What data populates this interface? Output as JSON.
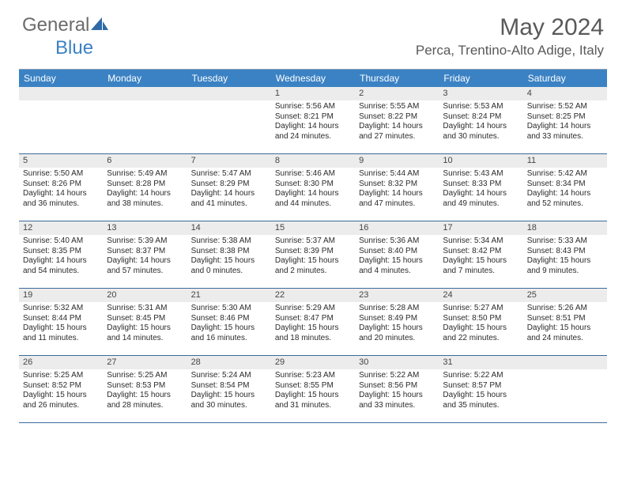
{
  "brand": {
    "text_gray": "General",
    "text_blue": "Blue"
  },
  "title": "May 2024",
  "location": "Perca, Trentino-Alto Adige, Italy",
  "colors": {
    "header_bg": "#3b82c4",
    "header_text": "#ffffff",
    "daynum_band": "#ececec",
    "week_divider": "#3b6a9a",
    "body_text": "#2b2b2b",
    "title_text": "#595959"
  },
  "weekdays": [
    "Sunday",
    "Monday",
    "Tuesday",
    "Wednesday",
    "Thursday",
    "Friday",
    "Saturday"
  ],
  "weeks": [
    [
      null,
      null,
      null,
      {
        "n": "1",
        "sunrise": "Sunrise: 5:56 AM",
        "sunset": "Sunset: 8:21 PM",
        "daylight": "Daylight: 14 hours and 24 minutes."
      },
      {
        "n": "2",
        "sunrise": "Sunrise: 5:55 AM",
        "sunset": "Sunset: 8:22 PM",
        "daylight": "Daylight: 14 hours and 27 minutes."
      },
      {
        "n": "3",
        "sunrise": "Sunrise: 5:53 AM",
        "sunset": "Sunset: 8:24 PM",
        "daylight": "Daylight: 14 hours and 30 minutes."
      },
      {
        "n": "4",
        "sunrise": "Sunrise: 5:52 AM",
        "sunset": "Sunset: 8:25 PM",
        "daylight": "Daylight: 14 hours and 33 minutes."
      }
    ],
    [
      {
        "n": "5",
        "sunrise": "Sunrise: 5:50 AM",
        "sunset": "Sunset: 8:26 PM",
        "daylight": "Daylight: 14 hours and 36 minutes."
      },
      {
        "n": "6",
        "sunrise": "Sunrise: 5:49 AM",
        "sunset": "Sunset: 8:28 PM",
        "daylight": "Daylight: 14 hours and 38 minutes."
      },
      {
        "n": "7",
        "sunrise": "Sunrise: 5:47 AM",
        "sunset": "Sunset: 8:29 PM",
        "daylight": "Daylight: 14 hours and 41 minutes."
      },
      {
        "n": "8",
        "sunrise": "Sunrise: 5:46 AM",
        "sunset": "Sunset: 8:30 PM",
        "daylight": "Daylight: 14 hours and 44 minutes."
      },
      {
        "n": "9",
        "sunrise": "Sunrise: 5:44 AM",
        "sunset": "Sunset: 8:32 PM",
        "daylight": "Daylight: 14 hours and 47 minutes."
      },
      {
        "n": "10",
        "sunrise": "Sunrise: 5:43 AM",
        "sunset": "Sunset: 8:33 PM",
        "daylight": "Daylight: 14 hours and 49 minutes."
      },
      {
        "n": "11",
        "sunrise": "Sunrise: 5:42 AM",
        "sunset": "Sunset: 8:34 PM",
        "daylight": "Daylight: 14 hours and 52 minutes."
      }
    ],
    [
      {
        "n": "12",
        "sunrise": "Sunrise: 5:40 AM",
        "sunset": "Sunset: 8:35 PM",
        "daylight": "Daylight: 14 hours and 54 minutes."
      },
      {
        "n": "13",
        "sunrise": "Sunrise: 5:39 AM",
        "sunset": "Sunset: 8:37 PM",
        "daylight": "Daylight: 14 hours and 57 minutes."
      },
      {
        "n": "14",
        "sunrise": "Sunrise: 5:38 AM",
        "sunset": "Sunset: 8:38 PM",
        "daylight": "Daylight: 15 hours and 0 minutes."
      },
      {
        "n": "15",
        "sunrise": "Sunrise: 5:37 AM",
        "sunset": "Sunset: 8:39 PM",
        "daylight": "Daylight: 15 hours and 2 minutes."
      },
      {
        "n": "16",
        "sunrise": "Sunrise: 5:36 AM",
        "sunset": "Sunset: 8:40 PM",
        "daylight": "Daylight: 15 hours and 4 minutes."
      },
      {
        "n": "17",
        "sunrise": "Sunrise: 5:34 AM",
        "sunset": "Sunset: 8:42 PM",
        "daylight": "Daylight: 15 hours and 7 minutes."
      },
      {
        "n": "18",
        "sunrise": "Sunrise: 5:33 AM",
        "sunset": "Sunset: 8:43 PM",
        "daylight": "Daylight: 15 hours and 9 minutes."
      }
    ],
    [
      {
        "n": "19",
        "sunrise": "Sunrise: 5:32 AM",
        "sunset": "Sunset: 8:44 PM",
        "daylight": "Daylight: 15 hours and 11 minutes."
      },
      {
        "n": "20",
        "sunrise": "Sunrise: 5:31 AM",
        "sunset": "Sunset: 8:45 PM",
        "daylight": "Daylight: 15 hours and 14 minutes."
      },
      {
        "n": "21",
        "sunrise": "Sunrise: 5:30 AM",
        "sunset": "Sunset: 8:46 PM",
        "daylight": "Daylight: 15 hours and 16 minutes."
      },
      {
        "n": "22",
        "sunrise": "Sunrise: 5:29 AM",
        "sunset": "Sunset: 8:47 PM",
        "daylight": "Daylight: 15 hours and 18 minutes."
      },
      {
        "n": "23",
        "sunrise": "Sunrise: 5:28 AM",
        "sunset": "Sunset: 8:49 PM",
        "daylight": "Daylight: 15 hours and 20 minutes."
      },
      {
        "n": "24",
        "sunrise": "Sunrise: 5:27 AM",
        "sunset": "Sunset: 8:50 PM",
        "daylight": "Daylight: 15 hours and 22 minutes."
      },
      {
        "n": "25",
        "sunrise": "Sunrise: 5:26 AM",
        "sunset": "Sunset: 8:51 PM",
        "daylight": "Daylight: 15 hours and 24 minutes."
      }
    ],
    [
      {
        "n": "26",
        "sunrise": "Sunrise: 5:25 AM",
        "sunset": "Sunset: 8:52 PM",
        "daylight": "Daylight: 15 hours and 26 minutes."
      },
      {
        "n": "27",
        "sunrise": "Sunrise: 5:25 AM",
        "sunset": "Sunset: 8:53 PM",
        "daylight": "Daylight: 15 hours and 28 minutes."
      },
      {
        "n": "28",
        "sunrise": "Sunrise: 5:24 AM",
        "sunset": "Sunset: 8:54 PM",
        "daylight": "Daylight: 15 hours and 30 minutes."
      },
      {
        "n": "29",
        "sunrise": "Sunrise: 5:23 AM",
        "sunset": "Sunset: 8:55 PM",
        "daylight": "Daylight: 15 hours and 31 minutes."
      },
      {
        "n": "30",
        "sunrise": "Sunrise: 5:22 AM",
        "sunset": "Sunset: 8:56 PM",
        "daylight": "Daylight: 15 hours and 33 minutes."
      },
      {
        "n": "31",
        "sunrise": "Sunrise: 5:22 AM",
        "sunset": "Sunset: 8:57 PM",
        "daylight": "Daylight: 15 hours and 35 minutes."
      },
      null
    ]
  ]
}
